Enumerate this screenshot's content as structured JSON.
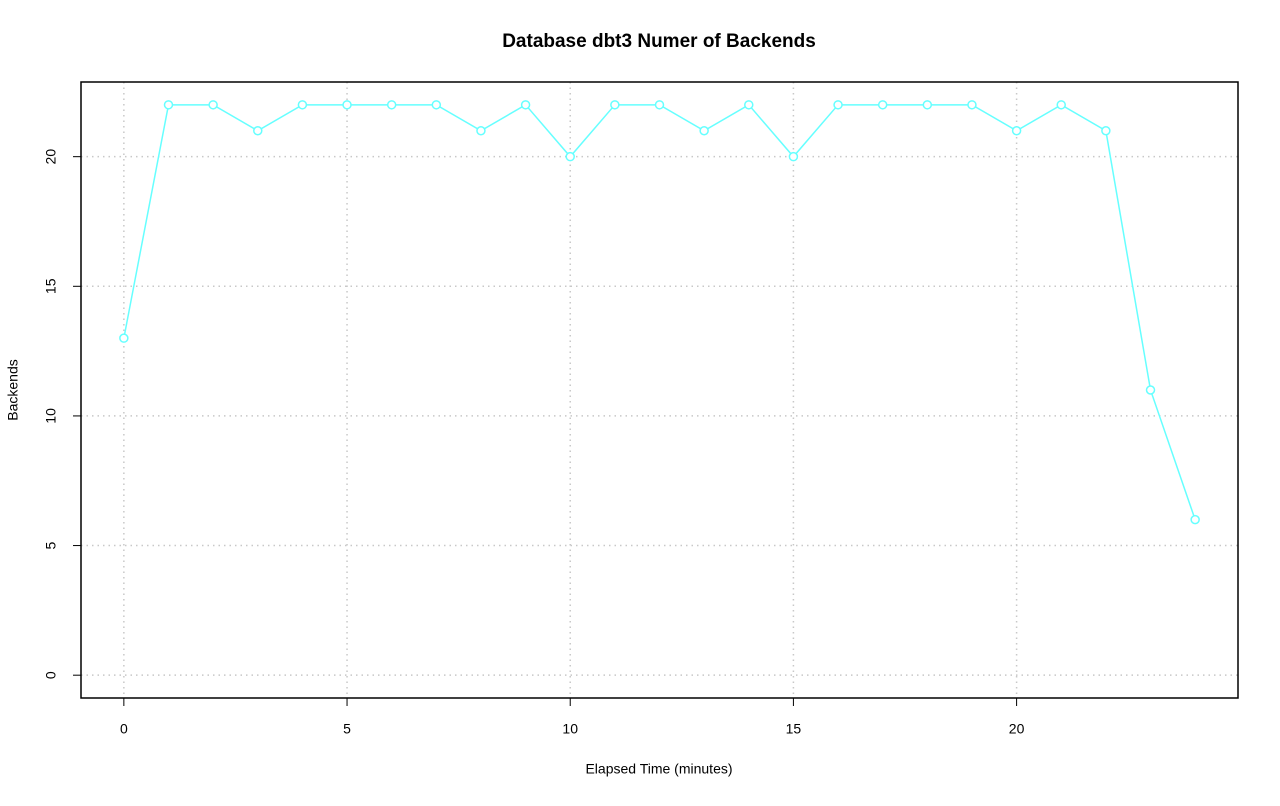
{
  "chart_data": {
    "type": "line",
    "title": "Database dbt3 Numer of Backends",
    "x_label": "Elapsed Time (minutes)",
    "y_label": "Backends",
    "x": [
      0,
      1,
      2,
      3,
      4,
      5,
      6,
      7,
      8,
      9,
      10,
      11,
      12,
      13,
      14,
      15,
      16,
      17,
      18,
      19,
      20,
      21,
      22,
      23,
      24
    ],
    "series": [
      {
        "name": "Backends",
        "color": "#66ffff",
        "values": [
          13,
          22,
          22,
          21,
          22,
          22,
          22,
          22,
          21,
          22,
          20,
          22,
          22,
          21,
          22,
          20,
          22,
          22,
          22,
          22,
          21,
          22,
          21,
          11,
          6
        ]
      }
    ],
    "xlim": [
      -0.96,
      24.96
    ],
    "ylim": [
      -0.88,
      22.88
    ],
    "xticks": [
      0,
      5,
      10,
      15,
      20
    ],
    "yticks": [
      0,
      5,
      10,
      15,
      20
    ],
    "grid": true
  }
}
